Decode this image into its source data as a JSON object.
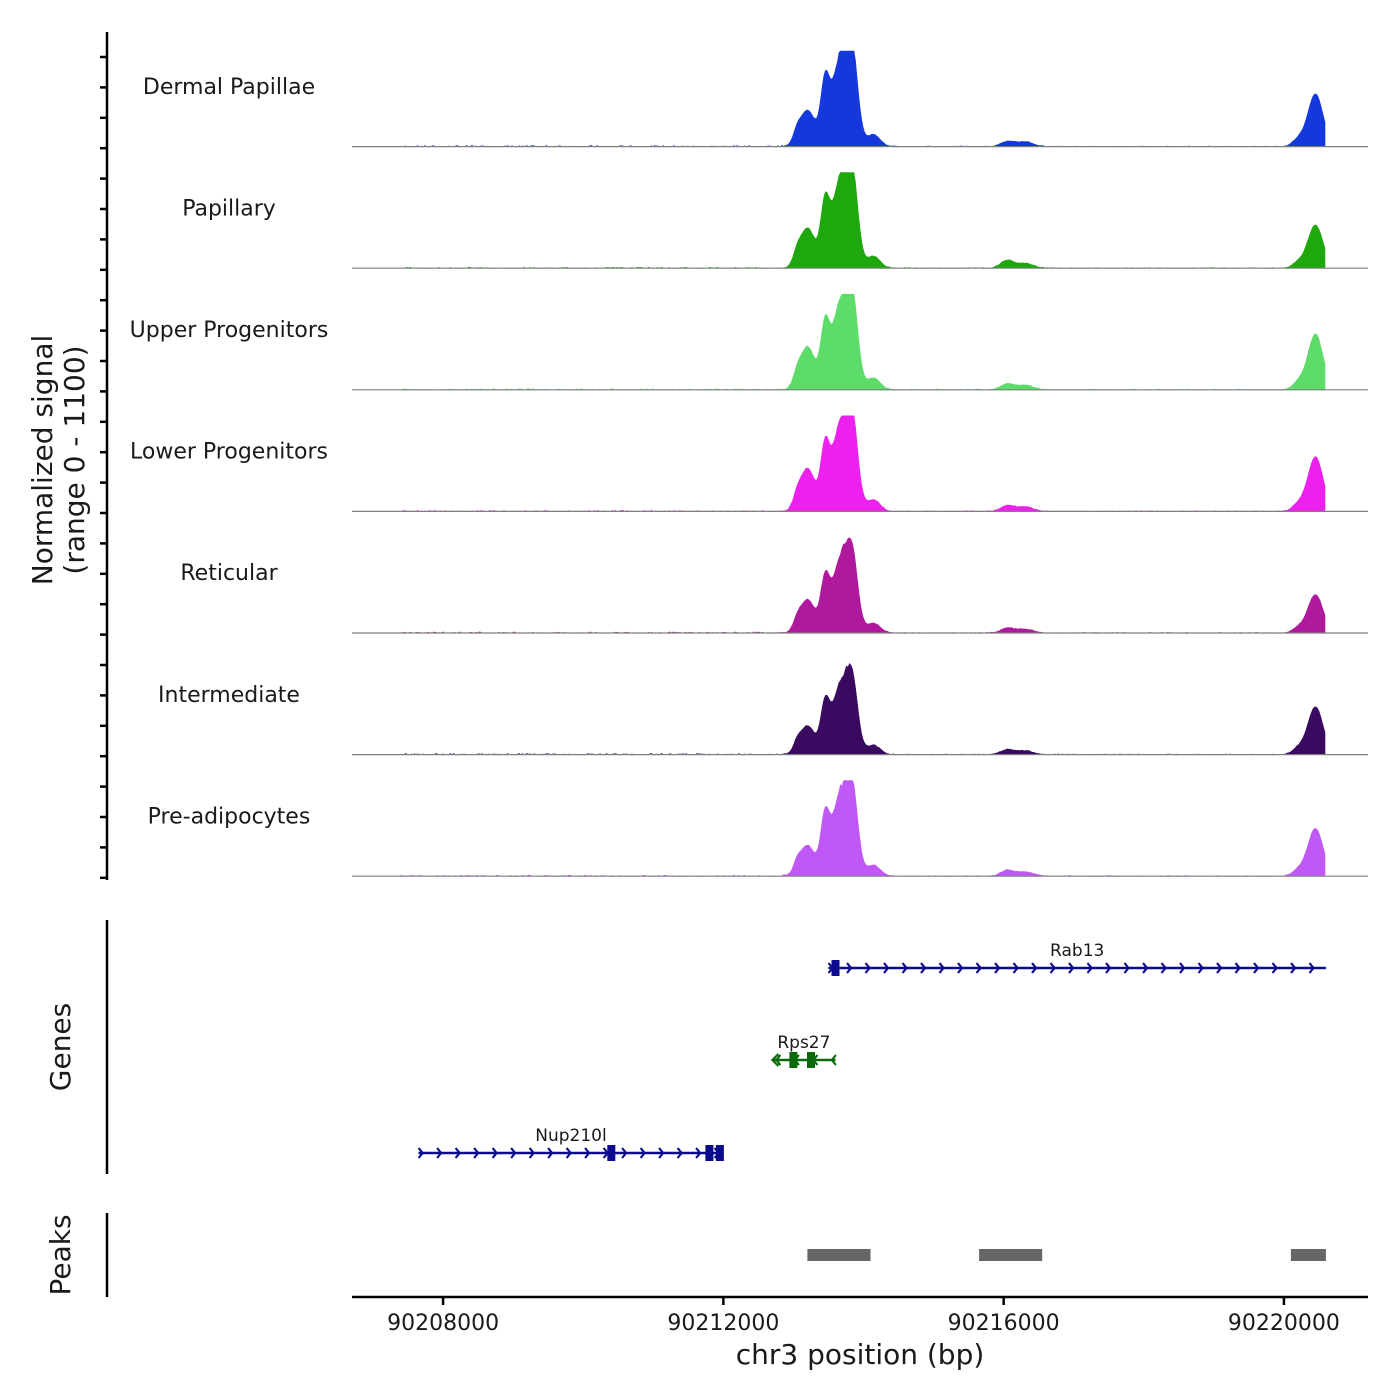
{
  "chart_data": {
    "type": "area",
    "x_axis": {
      "label": "chr3 position (bp)",
      "range": [
        90206700,
        90221200
      ],
      "ticks": [
        90208000,
        90212000,
        90216000,
        90220000
      ],
      "tick_labels": [
        "90208000",
        "90212000",
        "90216000",
        "90220000"
      ]
    },
    "y_axis": {
      "label": "Normalized signal",
      "sublabel": "(range 0 - 1100)",
      "range": [
        0,
        1100
      ]
    },
    "tracks": [
      {
        "name": "Dermal Papillae",
        "color": "#1438dc",
        "peak_heights": [
          0.38,
          1.0,
          0.05,
          0.55
        ]
      },
      {
        "name": "Papillary",
        "color": "#1ea80e",
        "peak_heights": [
          0.42,
          1.0,
          0.08,
          0.45
        ]
      },
      {
        "name": "Upper Progenitors",
        "color": "#5ddc6a",
        "peak_heights": [
          0.45,
          0.98,
          0.06,
          0.58
        ]
      },
      {
        "name": "Lower Progenitors",
        "color": "#ee20ee",
        "peak_heights": [
          0.45,
          0.98,
          0.06,
          0.57
        ]
      },
      {
        "name": "Reticular",
        "color": "#b0199e",
        "peak_heights": [
          0.35,
          0.82,
          0.05,
          0.4
        ]
      },
      {
        "name": "Intermediate",
        "color": "#3a0a60",
        "peak_heights": [
          0.3,
          0.78,
          0.05,
          0.5
        ]
      },
      {
        "name": "Pre-adipocytes",
        "color": "#bf58f5",
        "peak_heights": [
          0.32,
          0.92,
          0.06,
          0.5
        ]
      }
    ],
    "signal_peaks": [
      {
        "center": 90213200,
        "width": 110
      },
      {
        "center": 90213700,
        "width": 140
      },
      {
        "center": 90216050,
        "width": 90
      },
      {
        "center": 90220450,
        "width": 110
      }
    ],
    "genes": [
      {
        "name": "Rab13",
        "start": 90213500,
        "end": 90220600,
        "strand": "+",
        "color": "#0b0b8c",
        "exons": [
          90213600
        ]
      },
      {
        "name": "Rps27",
        "start": 90212700,
        "end": 90213600,
        "strand": "-",
        "color": "#0a6a0a",
        "exons": [
          90213000,
          90213250
        ]
      },
      {
        "name": "Nup210l",
        "start": 90207650,
        "end": 90212000,
        "strand": "+",
        "color": "#0b0b8c",
        "exons": [
          90210400,
          90211800,
          90211950
        ]
      }
    ],
    "peaks": [
      {
        "start": 90213200,
        "end": 90214100
      },
      {
        "start": 90215650,
        "end": 90216550
      },
      {
        "start": 90220100,
        "end": 90220600
      }
    ],
    "panel_labels": {
      "genes": "Genes",
      "peaks": "Peaks"
    },
    "peak_color": "#666666"
  }
}
